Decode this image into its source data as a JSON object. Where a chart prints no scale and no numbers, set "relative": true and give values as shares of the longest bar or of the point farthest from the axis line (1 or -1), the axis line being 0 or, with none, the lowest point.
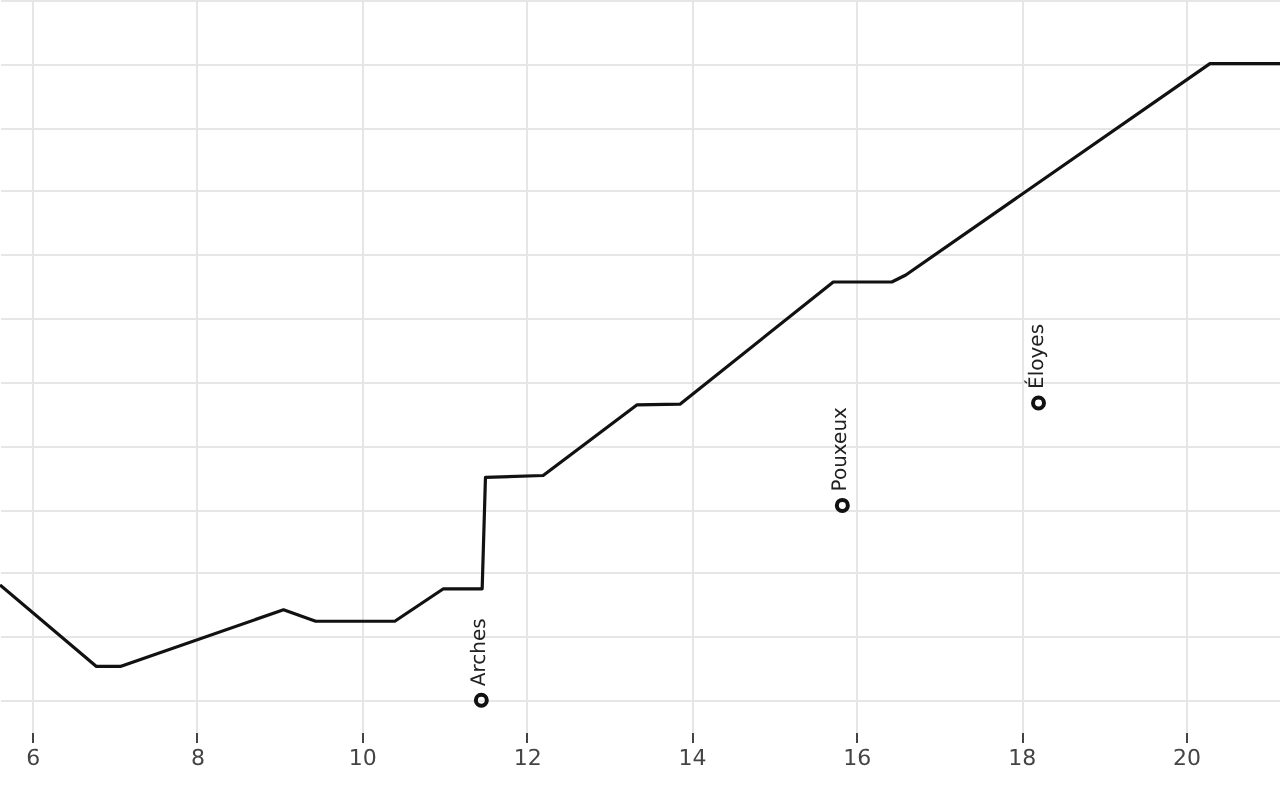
{
  "chart_data": {
    "type": "line",
    "relative": true,
    "grid": true,
    "marker": "none",
    "line_style": "solid",
    "xlim": [
      5.61,
      21.14
    ],
    "xticks": [
      6,
      8,
      10,
      12,
      14,
      16,
      18,
      20
    ],
    "series": [
      {
        "color": "#111111",
        "x": [
          5.61,
          6.78,
          7.07,
          9.05,
          9.44,
          10.4,
          10.99,
          11.46,
          11.5,
          12.2,
          13.34,
          13.86,
          15.72,
          16.43,
          16.6,
          20.29,
          21.14
        ],
        "values": [
          0.181,
          0.053,
          0.053,
          0.142,
          0.124,
          0.124,
          0.175,
          0.175,
          0.35,
          0.353,
          0.464,
          0.465,
          0.657,
          0.657,
          0.668,
          1,
          1
        ]
      },
      {
        "type": "scatter",
        "marker": "circle",
        "color": "#111111",
        "x": [
          11.45,
          15.83,
          18.21
        ],
        "values": [
          0,
          0.306,
          0.467
        ]
      }
    ],
    "annotations": [
      {
        "text": "Arches",
        "x": 11.45,
        "y": 0
      },
      {
        "text": "Pouxeux",
        "x": 15.83,
        "y": 0.306
      },
      {
        "text": "Éloyes",
        "x": 18.21,
        "y": 0.467
      }
    ]
  }
}
